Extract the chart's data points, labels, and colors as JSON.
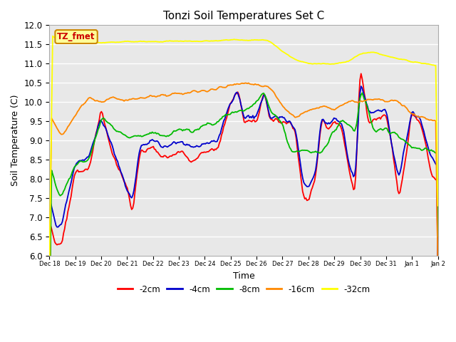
{
  "title": "Tonzi Soil Temperatures Set C",
  "xlabel": "Time",
  "ylabel": "Soil Temperature (C)",
  "ylim": [
    6.0,
    12.0
  ],
  "yticks": [
    6.0,
    6.5,
    7.0,
    7.5,
    8.0,
    8.5,
    9.0,
    9.5,
    10.0,
    10.5,
    11.0,
    11.5,
    12.0
  ],
  "series": {
    "-2cm": {
      "color": "#ff0000"
    },
    "-4cm": {
      "color": "#0000cc"
    },
    "-8cm": {
      "color": "#00bb00"
    },
    "-16cm": {
      "color": "#ff8800"
    },
    "-32cm": {
      "color": "#ffff00"
    }
  },
  "legend_label": "TZ_fmet",
  "legend_bg": "#ffff99",
  "legend_border": "#cc8800",
  "bg_color": "#e8e8e8",
  "grid_color": "#ffffff",
  "tick_labels": [
    "Dec 18",
    "Dec 19",
    "Dec 20",
    "Dec 21",
    "Dec 22",
    "Dec 23",
    "Dec 24",
    "Dec 25",
    "Dec 26",
    "Dec 27",
    "Dec 28",
    "Dec 29",
    "Dec 30",
    "Dec 31",
    "Jan 1",
    "Jan 2"
  ],
  "n_days": 15,
  "pts_per_day": 24
}
